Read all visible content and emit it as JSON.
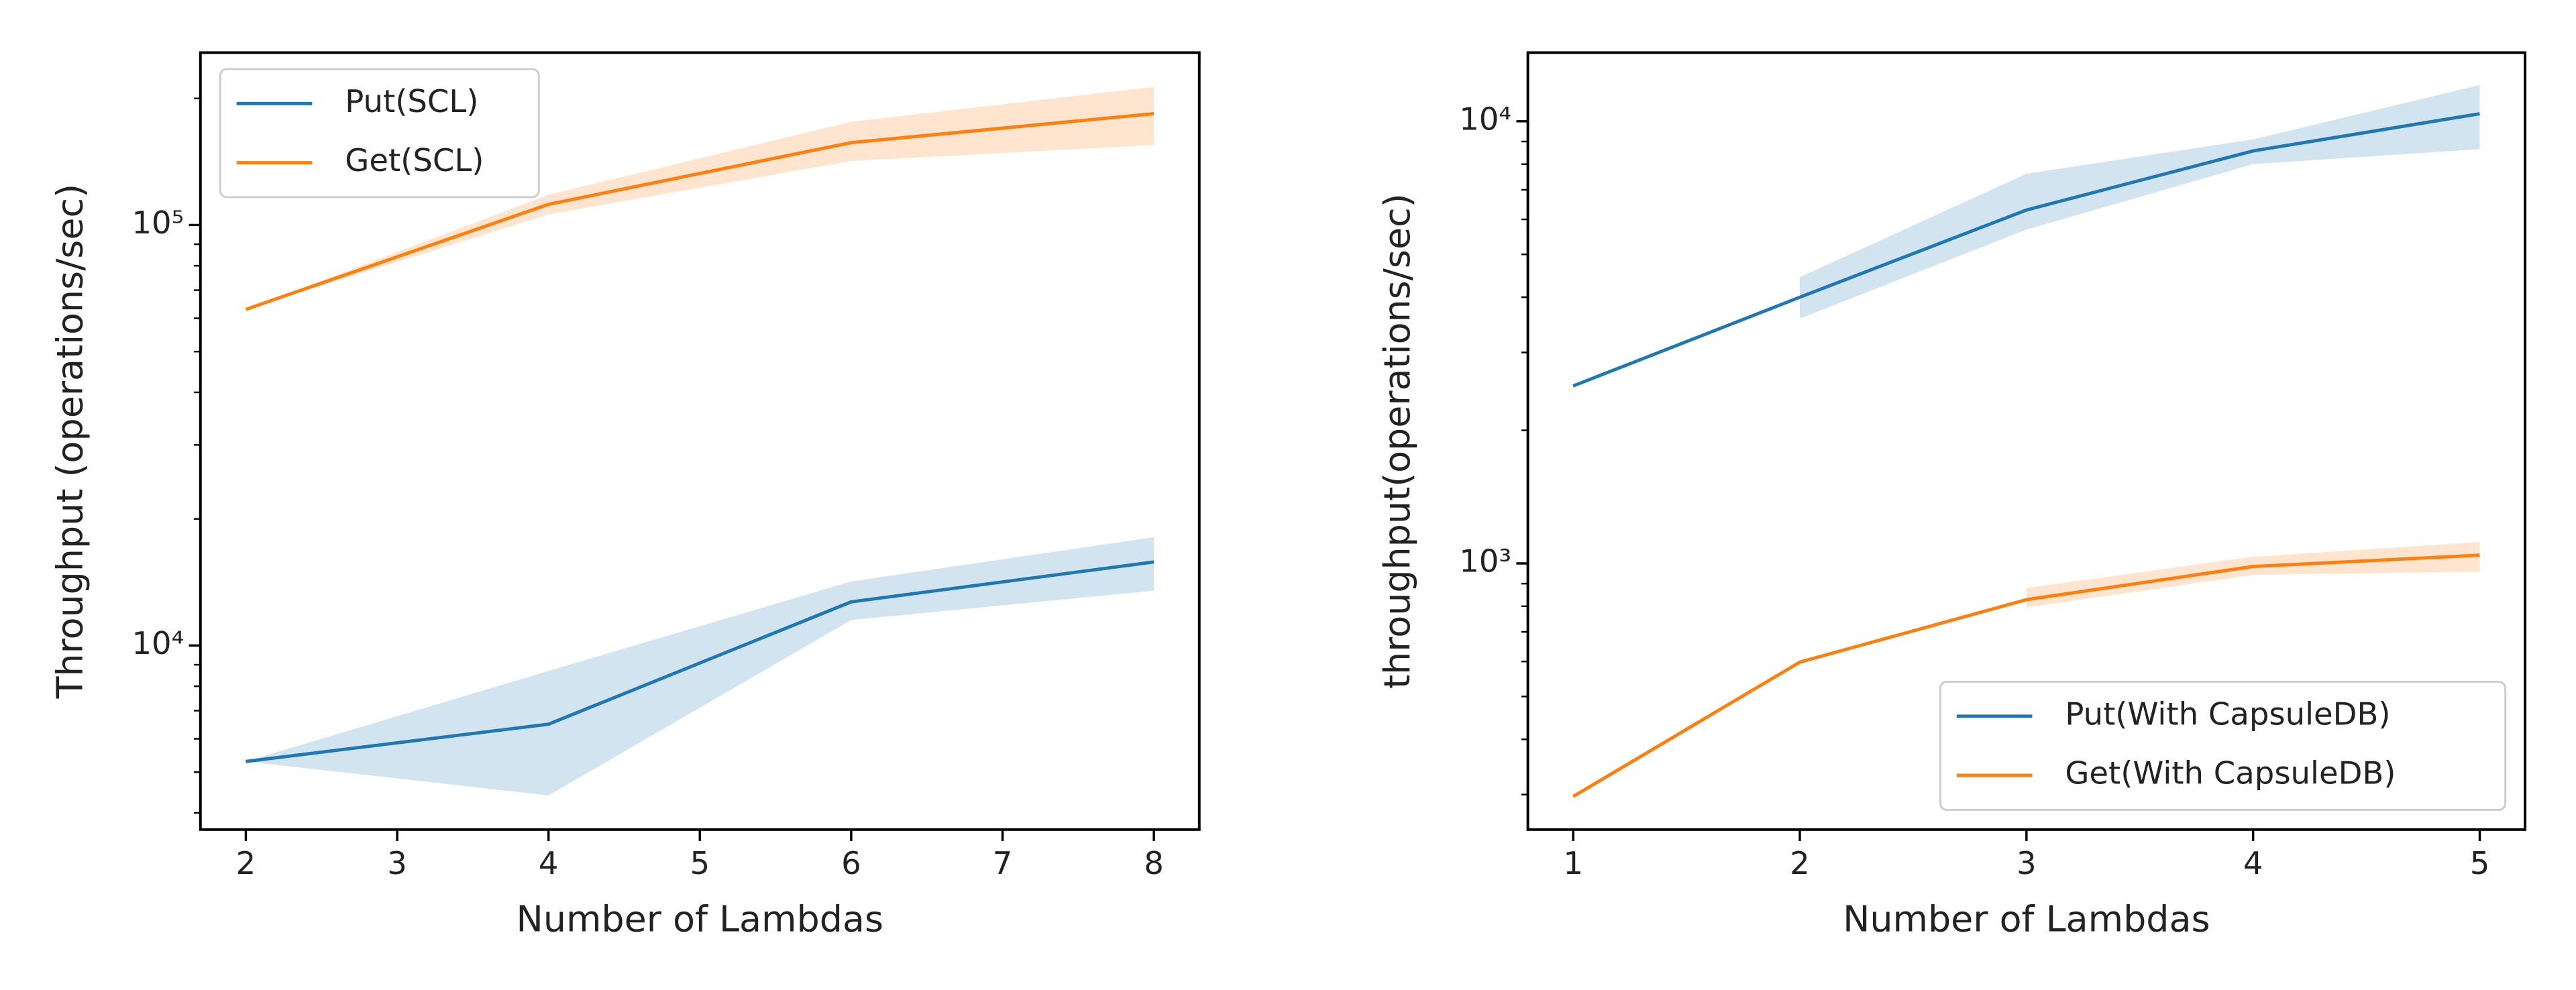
{
  "chart_data": [
    {
      "type": "line",
      "xlabel": "Number of Lambdas",
      "ylabel": "Throughput (operations/sec)",
      "x": [
        2,
        4,
        6,
        8
      ],
      "xlim": [
        1.7,
        8.3
      ],
      "xticks": [
        2,
        3,
        4,
        5,
        6,
        7,
        8
      ],
      "log_y": true,
      "ylim": [
        3650,
        257000
      ],
      "yticks": [
        {
          "value": 10000,
          "label": "10⁴"
        },
        {
          "value": 100000,
          "label": "10⁵"
        }
      ],
      "yminorticks": [
        4000,
        5000,
        6000,
        7000,
        8000,
        9000,
        20000,
        30000,
        40000,
        50000,
        60000,
        70000,
        80000,
        90000,
        200000
      ],
      "legend": "upper left",
      "series": [
        {
          "name": "Put(SCL)",
          "color": "#1f77b4",
          "values": [
            5300,
            6500,
            12700,
            15800
          ],
          "band_low": [
            5300,
            4400,
            11500,
            13500
          ],
          "band_high": [
            5300,
            8700,
            14200,
            18100
          ]
        },
        {
          "name": "Get(SCL)",
          "color": "#ff7f0e",
          "values": [
            63000,
            112000,
            157000,
            184000
          ],
          "band_low": [
            63000,
            106000,
            142000,
            155000
          ],
          "band_high": [
            63000,
            118000,
            176000,
            213000
          ]
        }
      ]
    },
    {
      "type": "line",
      "xlabel": "Number of Lambdas",
      "ylabel": "throughput(operations/sec)",
      "x": [
        1,
        2,
        3,
        4,
        5
      ],
      "xlim": [
        0.8,
        5.2
      ],
      "xticks": [
        1,
        2,
        3,
        4,
        5
      ],
      "log_y": true,
      "ylim": [
        250,
        14300
      ],
      "yticks": [
        {
          "value": 1000,
          "label": "10³"
        },
        {
          "value": 10000,
          "label": "10⁴"
        }
      ],
      "yminorticks": [
        300,
        400,
        500,
        600,
        700,
        800,
        900,
        2000,
        3000,
        4000,
        5000,
        6000,
        7000,
        8000,
        9000
      ],
      "legend": "lower right",
      "series": [
        {
          "name": "Put(With CapsuleDB)",
          "color": "#1f77b4",
          "values": [
            2520,
            4000,
            6300,
            8570,
            10400
          ],
          "band_low": [
            null,
            3580,
            5690,
            8000,
            8650
          ],
          "band_high": [
            null,
            4440,
            7610,
            9100,
            12080
          ]
        },
        {
          "name": "Get(With CapsuleDB)",
          "color": "#ff7f0e",
          "values": [
            297,
            598,
            828,
            984,
            1044
          ],
          "band_low": [
            null,
            null,
            795,
            942,
            958
          ],
          "band_high": [
            null,
            null,
            880,
            1035,
            1118
          ]
        }
      ]
    }
  ]
}
